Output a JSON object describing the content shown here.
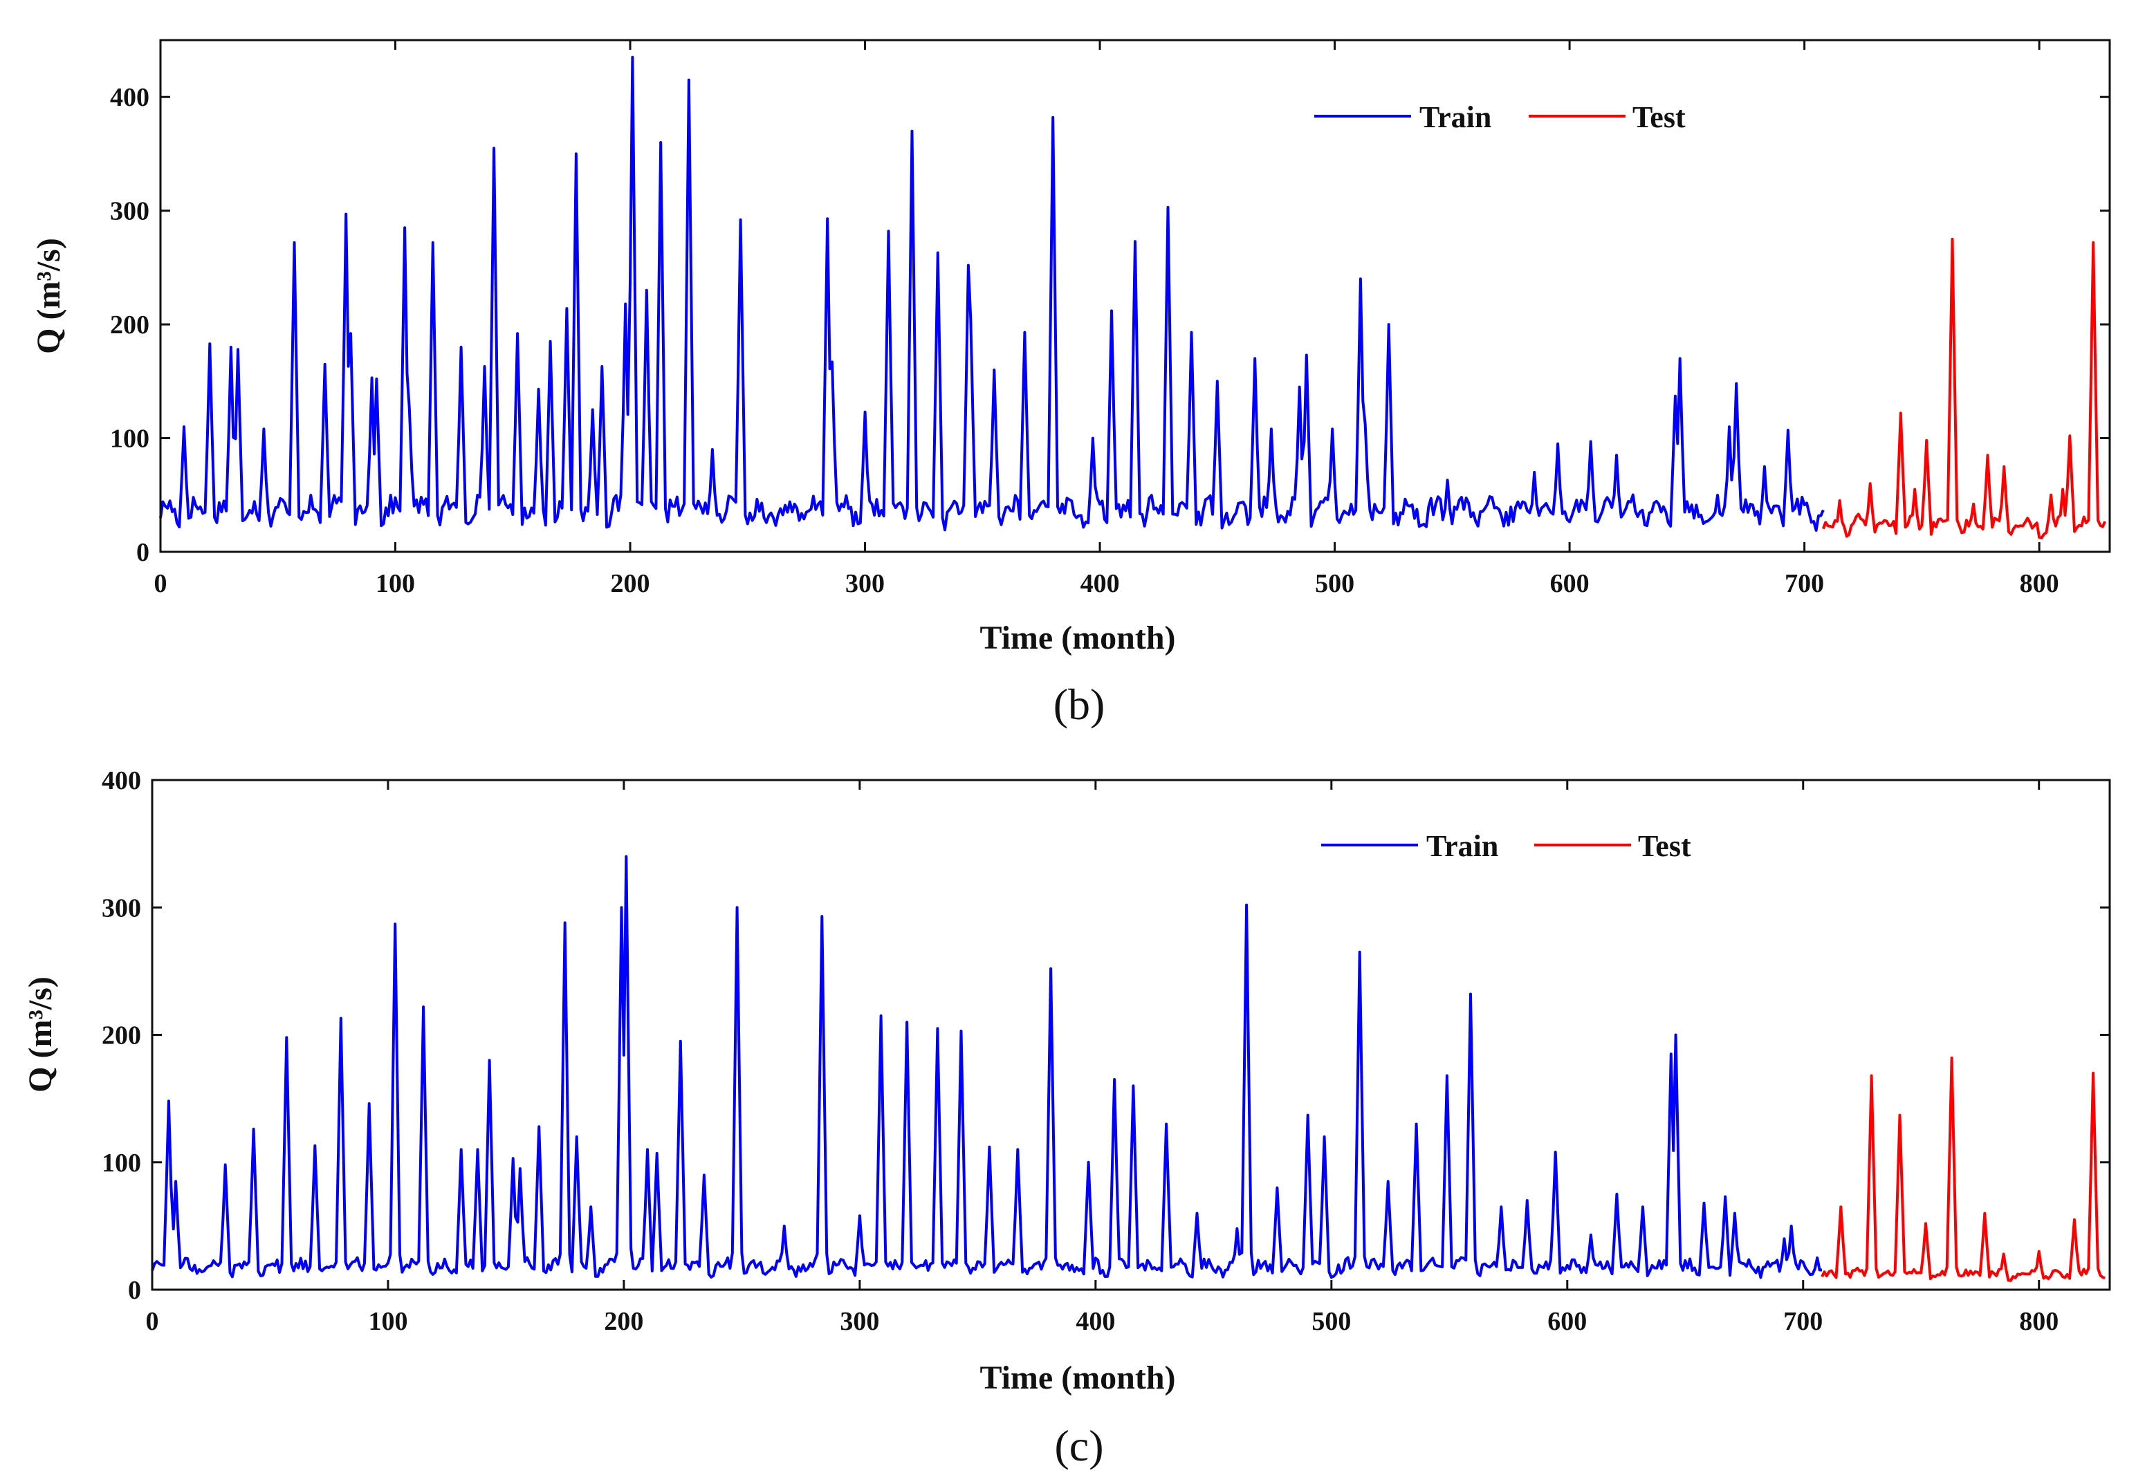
{
  "colors": {
    "train": "#0000ff",
    "test": "#ff0000",
    "axis": "#111111"
  },
  "chart_data": [
    {
      "type": "line",
      "panel_label": "(b)",
      "xlabel": "Time (month)",
      "ylabel": "Q (m³/s)",
      "xlim": [
        0,
        830
      ],
      "ylim": [
        0,
        450
      ],
      "xticks": [
        0,
        100,
        200,
        300,
        400,
        500,
        600,
        700,
        800
      ],
      "yticks": [
        0,
        100,
        200,
        300,
        400
      ],
      "legend": {
        "position": "top-right",
        "entries": [
          "Train",
          "Test"
        ]
      },
      "split_month": 708,
      "series": [
        {
          "name": "Train",
          "baseline": 30,
          "peaks": [
            [
              10,
              110
            ],
            [
              21,
              183
            ],
            [
              30,
              180
            ],
            [
              33,
              178
            ],
            [
              44,
              108
            ],
            [
              57,
              272
            ],
            [
              70,
              165
            ],
            [
              79,
              297
            ],
            [
              81,
              192
            ],
            [
              90,
              153
            ],
            [
              92,
              152
            ],
            [
              104,
              285
            ],
            [
              106,
              125
            ],
            [
              116,
              272
            ],
            [
              128,
              180
            ],
            [
              138,
              163
            ],
            [
              142,
              355
            ],
            [
              152,
              192
            ],
            [
              161,
              143
            ],
            [
              166,
              185
            ],
            [
              173,
              214
            ],
            [
              177,
              350
            ],
            [
              184,
              125
            ],
            [
              188,
              163
            ],
            [
              198,
              218
            ],
            [
              201,
              435
            ],
            [
              207,
              230
            ],
            [
              213,
              360
            ],
            [
              225,
              415
            ],
            [
              235,
              90
            ],
            [
              247,
              292
            ],
            [
              284,
              293
            ],
            [
              286,
              167
            ],
            [
              300,
              123
            ],
            [
              310,
              282
            ],
            [
              320,
              370
            ],
            [
              331,
              263
            ],
            [
              344,
              252
            ],
            [
              345,
              205
            ],
            [
              355,
              160
            ],
            [
              368,
              193
            ],
            [
              380,
              382
            ],
            [
              397,
              100
            ],
            [
              405,
              212
            ],
            [
              415,
              273
            ],
            [
              429,
              303
            ],
            [
              439,
              193
            ],
            [
              450,
              150
            ],
            [
              466,
              170
            ],
            [
              473,
              108
            ],
            [
              485,
              145
            ],
            [
              488,
              173
            ],
            [
              499,
              108
            ],
            [
              511,
              240
            ],
            [
              513,
              112
            ],
            [
              523,
              200
            ],
            [
              548,
              63
            ],
            [
              585,
              70
            ],
            [
              595,
              95
            ],
            [
              609,
              97
            ],
            [
              620,
              85
            ],
            [
              645,
              137
            ],
            [
              647,
              170
            ],
            [
              668,
              110
            ],
            [
              671,
              148
            ],
            [
              683,
              75
            ],
            [
              693,
              107
            ]
          ]
        },
        {
          "name": "Test",
          "baseline": 20,
          "peaks": [
            [
              715,
              45
            ],
            [
              728,
              60
            ],
            [
              741,
              122
            ],
            [
              747,
              55
            ],
            [
              752,
              98
            ],
            [
              763,
              275
            ],
            [
              772,
              42
            ],
            [
              778,
              85
            ],
            [
              785,
              75
            ],
            [
              805,
              50
            ],
            [
              810,
              55
            ],
            [
              813,
              102
            ],
            [
              823,
              272
            ]
          ]
        }
      ]
    },
    {
      "type": "line",
      "panel_label": "(c)",
      "xlabel": "Time (month)",
      "ylabel": "Q (m³/s)",
      "xlim": [
        0,
        830
      ],
      "ylim": [
        0,
        400
      ],
      "xticks": [
        0,
        100,
        200,
        300,
        400,
        500,
        600,
        700,
        800
      ],
      "yticks": [
        0,
        100,
        200,
        300,
        400
      ],
      "legend": {
        "position": "top-right",
        "entries": [
          "Train",
          "Test"
        ]
      },
      "split_month": 708,
      "series": [
        {
          "name": "Train",
          "baseline": 15,
          "peaks": [
            [
              7,
              148
            ],
            [
              10,
              85
            ],
            [
              31,
              98
            ],
            [
              43,
              126
            ],
            [
              57,
              198
            ],
            [
              69,
              113
            ],
            [
              80,
              213
            ],
            [
              92,
              146
            ],
            [
              103,
              287
            ],
            [
              115,
              222
            ],
            [
              131,
              110
            ],
            [
              138,
              110
            ],
            [
              143,
              180
            ],
            [
              153,
              103
            ],
            [
              156,
              95
            ],
            [
              164,
              128
            ],
            [
              175,
              288
            ],
            [
              180,
              120
            ],
            [
              186,
              65
            ],
            [
              199,
              300
            ],
            [
              201,
              340
            ],
            [
              210,
              110
            ],
            [
              214,
              107
            ],
            [
              224,
              195
            ],
            [
              234,
              90
            ],
            [
              248,
              300
            ],
            [
              268,
              50
            ],
            [
              284,
              293
            ],
            [
              300,
              58
            ],
            [
              309,
              215
            ],
            [
              320,
              210
            ],
            [
              333,
              205
            ],
            [
              343,
              203
            ],
            [
              355,
              112
            ],
            [
              367,
              110
            ],
            [
              381,
              252
            ],
            [
              397,
              100
            ],
            [
              408,
              165
            ],
            [
              416,
              160
            ],
            [
              430,
              130
            ],
            [
              443,
              60
            ],
            [
              460,
              48
            ],
            [
              464,
              302
            ],
            [
              477,
              80
            ],
            [
              490,
              137
            ],
            [
              497,
              120
            ],
            [
              512,
              265
            ],
            [
              524,
              85
            ],
            [
              536,
              130
            ],
            [
              549,
              168
            ],
            [
              559,
              232
            ],
            [
              572,
              65
            ],
            [
              583,
              70
            ],
            [
              595,
              108
            ],
            [
              610,
              43
            ],
            [
              621,
              75
            ],
            [
              632,
              65
            ],
            [
              644,
              185
            ],
            [
              646,
              200
            ],
            [
              658,
              68
            ],
            [
              667,
              73
            ],
            [
              671,
              60
            ],
            [
              692,
              40
            ],
            [
              695,
              50
            ],
            [
              706,
              25
            ]
          ]
        },
        {
          "name": "Test",
          "baseline": 10,
          "peaks": [
            [
              716,
              65
            ],
            [
              729,
              168
            ],
            [
              741,
              137
            ],
            [
              752,
              52
            ],
            [
              763,
              182
            ],
            [
              777,
              60
            ],
            [
              785,
              28
            ],
            [
              800,
              30
            ],
            [
              815,
              55
            ],
            [
              823,
              170
            ]
          ]
        }
      ]
    }
  ]
}
